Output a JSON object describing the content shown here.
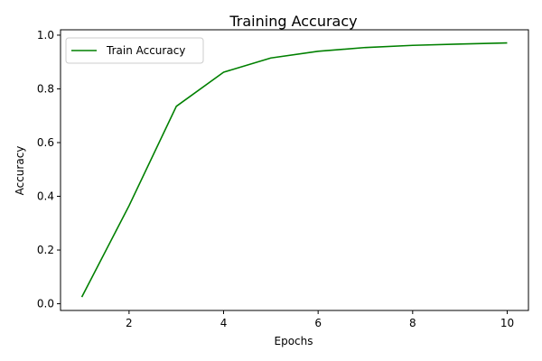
{
  "chart_data": {
    "type": "line",
    "title": "Training Accuracy",
    "xlabel": "Epochs",
    "ylabel": "Accuracy",
    "xlim": [
      0.55,
      10.45
    ],
    "ylim": [
      -0.025,
      1.02
    ],
    "xticks": [
      2,
      4,
      6,
      8,
      10
    ],
    "yticks": [
      0.0,
      0.2,
      0.4,
      0.6,
      0.8,
      1.0
    ],
    "xtick_labels": [
      "2",
      "4",
      "6",
      "8",
      "10"
    ],
    "ytick_labels": [
      "0.0",
      "0.2",
      "0.4",
      "0.6",
      "0.8",
      "1.0"
    ],
    "grid": false,
    "legend_position": "upper-left",
    "series": [
      {
        "name": "Train Accuracy",
        "color": "#008000",
        "x": [
          1,
          2,
          3,
          4,
          5,
          6,
          7,
          8,
          9,
          10
        ],
        "y": [
          0.025,
          0.365,
          0.735,
          0.862,
          0.915,
          0.94,
          0.954,
          0.962,
          0.967,
          0.971
        ]
      }
    ]
  }
}
